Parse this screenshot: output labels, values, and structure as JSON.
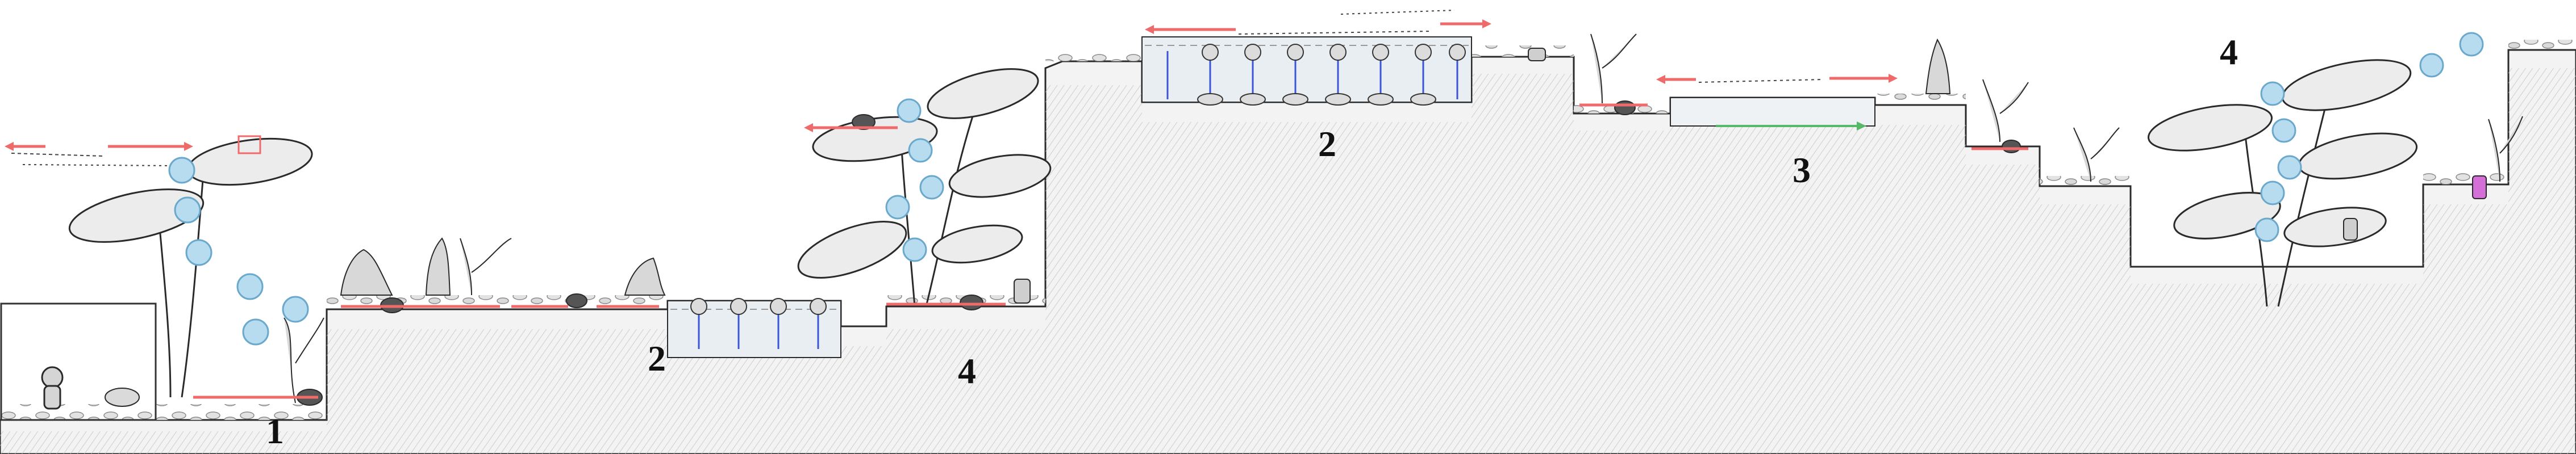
{
  "level": {
    "section_markers": [
      {
        "id": "m1",
        "label": "1"
      },
      {
        "id": "m2a",
        "label": "2"
      },
      {
        "id": "m4a",
        "label": "4"
      },
      {
        "id": "m2b",
        "label": "2"
      },
      {
        "id": "m3",
        "label": "3"
      },
      {
        "id": "m4b",
        "label": "4"
      }
    ]
  },
  "colors": {
    "ink": "#2a2a2a",
    "terrain_fill": "#f4f4f4",
    "rock_shade": "#d6d6d6",
    "bubble": "#b8dcef",
    "bubble_stroke": "#6aa8cc",
    "leaf": "#ececec",
    "enemy_path": "#ef6b6b",
    "piston": "#3c55d8",
    "goal_path": "#58b86a",
    "pink_item": "#d46fd8"
  },
  "icons": {
    "player": "player-character-icon",
    "enemy": "crab-enemy-icon",
    "bubble": "air-bubble-icon",
    "lantern": "lantern-icon",
    "plant": "seaweed-plant-icon"
  }
}
